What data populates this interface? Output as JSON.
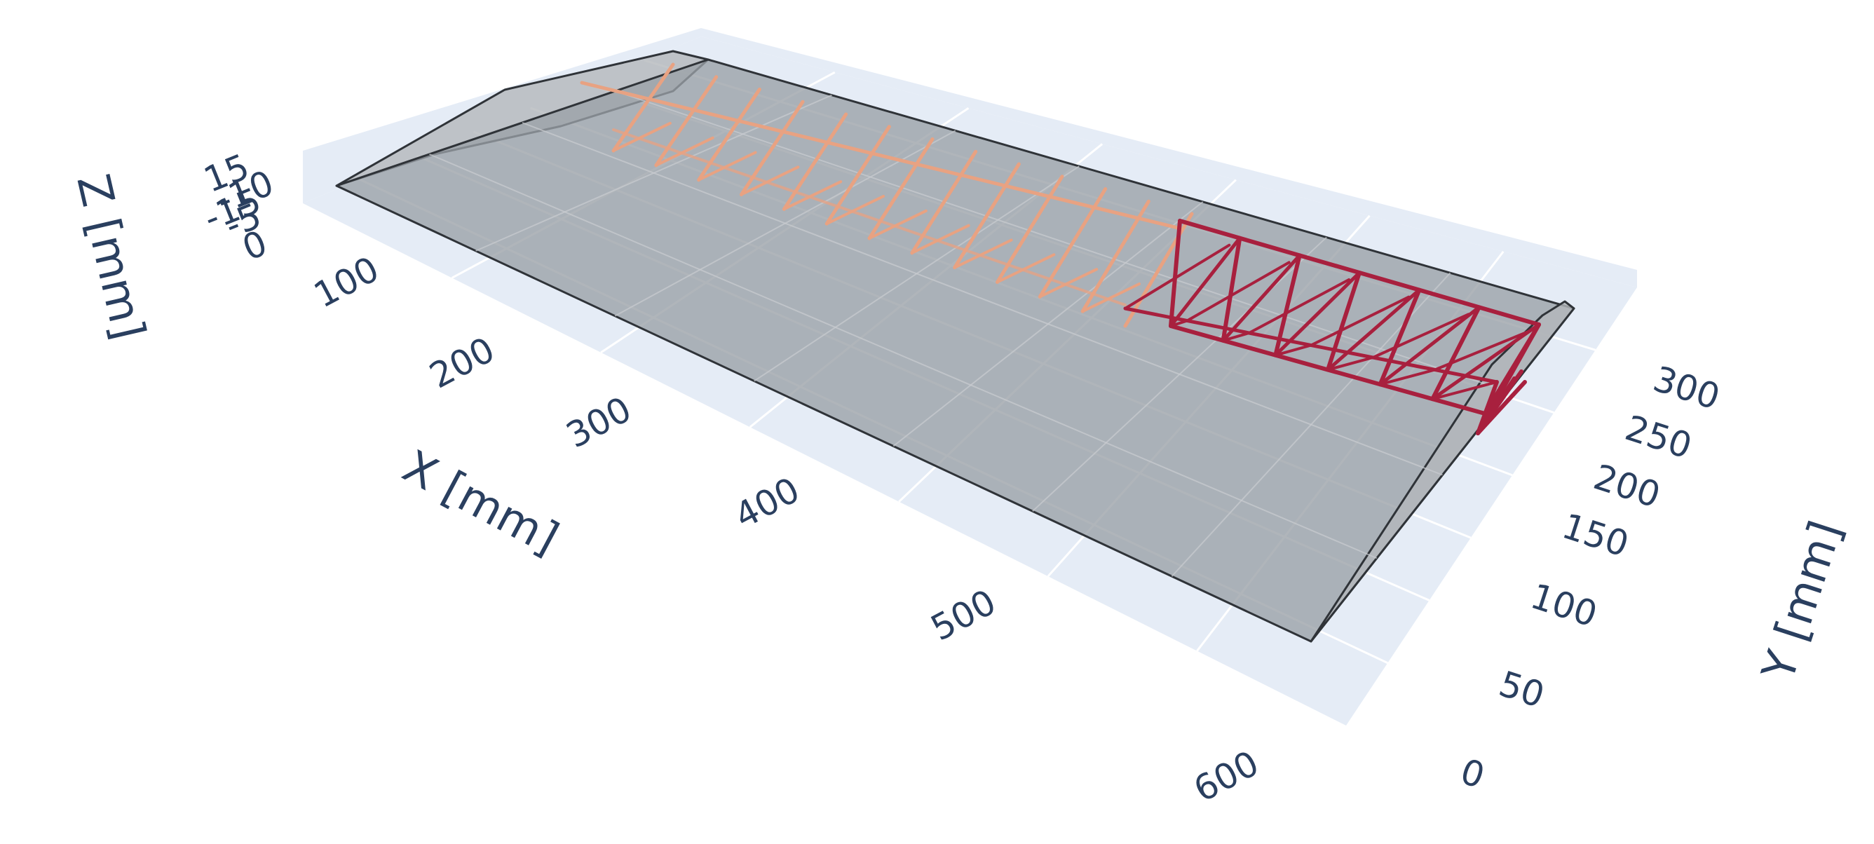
{
  "chart_data": {
    "type": "3d-scatter",
    "title": "",
    "axes": {
      "x": {
        "title": "X [mm]",
        "ticks": [
          "100",
          "200",
          "300",
          "400",
          "500",
          "600"
        ],
        "range": [
          50,
          650
        ]
      },
      "y": {
        "title": "Y [mm]",
        "ticks": [
          "0",
          "50",
          "100",
          "150",
          "200",
          "250",
          "300"
        ],
        "range": [
          0,
          320
        ]
      },
      "z": {
        "title": "Z [mm]",
        "ticks": [
          "15",
          "-10",
          "-15",
          "-5",
          "0"
        ]
      }
    },
    "grid": true,
    "legend": "none",
    "series": [
      {
        "kind": "wing-surface",
        "color": "#9aa0a6",
        "edge_color": "#2f3338"
      },
      {
        "kind": "truss-root-section",
        "color": "#e8a282"
      },
      {
        "kind": "truss-tip-section",
        "color": "#a8203e"
      }
    ]
  }
}
